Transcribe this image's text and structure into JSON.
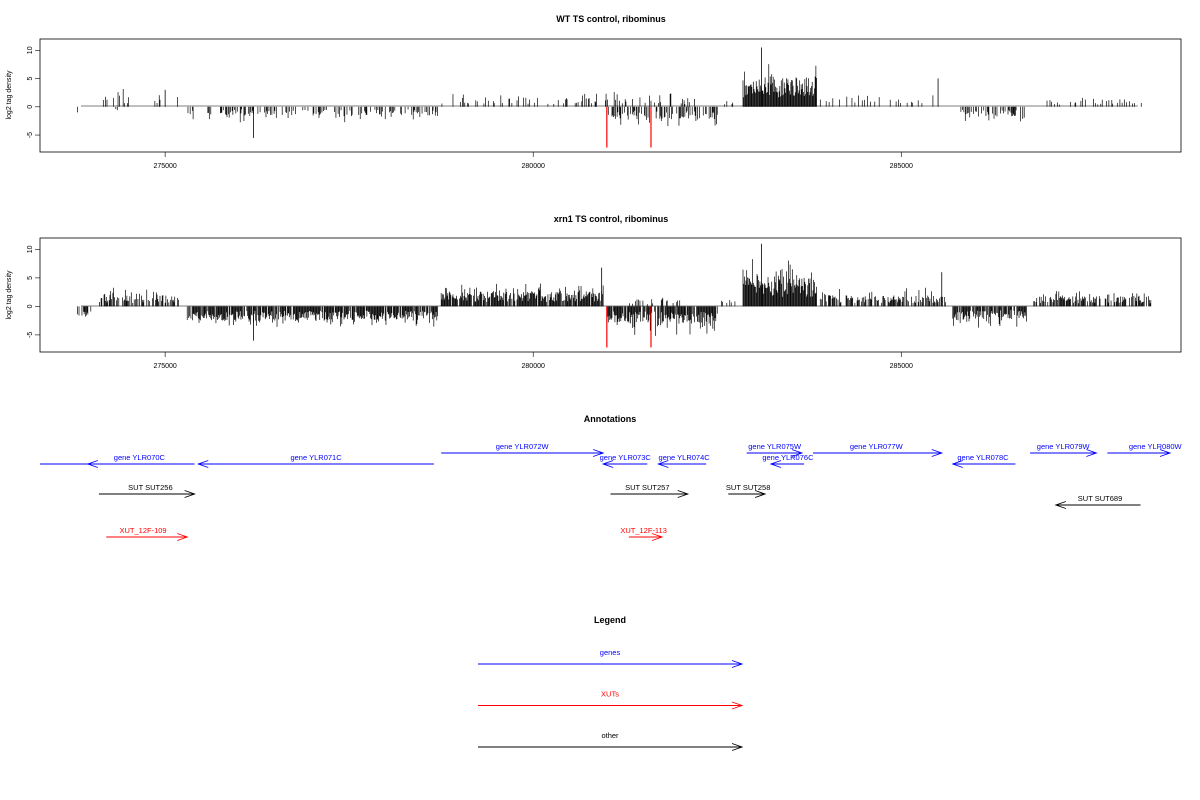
{
  "chart_data": [
    {
      "type": "bar",
      "title": "WT TS control, ribominus",
      "ylabel": "log2 tag density",
      "xlim": [
        273300,
        288800
      ],
      "ylim": [
        -8,
        12
      ],
      "xticks": [
        275000,
        280000,
        285000
      ],
      "xtick_labels": [
        "275000",
        "280000",
        "285000"
      ],
      "yticks": [
        -5,
        0,
        5,
        10
      ],
      "ytick_labels": [
        "-5",
        "0",
        "5",
        "10"
      ],
      "grid": false,
      "regions": [
        {
          "start": 273800,
          "end": 273830,
          "sign": -1,
          "base": 1.2,
          "var": 0.8,
          "density": 0.25
        },
        {
          "start": 274100,
          "end": 274500,
          "sign": 1,
          "base": 2,
          "var": 1.2,
          "density": 0.15
        },
        {
          "start": 274300,
          "end": 274350,
          "sign": -1,
          "base": 0.8,
          "var": 0.4,
          "density": 0.3
        },
        {
          "start": 274800,
          "end": 275200,
          "sign": 1,
          "base": 1.4,
          "var": 1.4,
          "density": 0.12
        },
        {
          "start": 275300,
          "end": 278700,
          "sign": -1,
          "base": 1.5,
          "var": 1.4,
          "density": 0.35
        },
        {
          "start": 278750,
          "end": 282200,
          "sign": 1,
          "base": 1.6,
          "var": 1.4,
          "density": 0.22
        },
        {
          "start": 281000,
          "end": 282500,
          "sign": -1,
          "base": 2.2,
          "var": 1.6,
          "density": 0.45
        },
        {
          "start": 282550,
          "end": 282750,
          "sign": 1,
          "base": 1,
          "var": 0.6,
          "density": 0.2
        },
        {
          "start": 282850,
          "end": 283850,
          "sign": 1,
          "base": 5.5,
          "var": 3.5,
          "density": 1.0
        },
        {
          "start": 283900,
          "end": 285500,
          "sign": 1,
          "base": 1.6,
          "var": 1.6,
          "density": 0.18
        },
        {
          "start": 285800,
          "end": 286700,
          "sign": -1,
          "base": 1.8,
          "var": 1.2,
          "density": 0.5
        },
        {
          "start": 286900,
          "end": 288300,
          "sign": 1,
          "base": 1.3,
          "var": 0.8,
          "density": 0.22
        }
      ],
      "spikes": [
        {
          "x": 275000,
          "y": 3,
          "color": "#000000"
        },
        {
          "x": 276200,
          "y": -5.5,
          "color": "#000000"
        },
        {
          "x": 283100,
          "y": 10.5,
          "color": "#000000"
        },
        {
          "x": 285500,
          "y": 5,
          "color": "#000000"
        },
        {
          "x": 281000,
          "y": -7.2,
          "color": "#ff0000"
        },
        {
          "x": 281600,
          "y": -7.2,
          "color": "#ff0000"
        }
      ]
    },
    {
      "type": "bar",
      "title": "xrn1 TS control, ribominus",
      "ylabel": "log2 tag density",
      "xlim": [
        273300,
        288800
      ],
      "ylim": [
        -8,
        12
      ],
      "xticks": [
        275000,
        280000,
        285000
      ],
      "xtick_labels": [
        "275000",
        "280000",
        "285000"
      ],
      "yticks": [
        -5,
        0,
        5,
        10
      ],
      "ytick_labels": [
        "-5",
        "0",
        "5",
        "10"
      ],
      "grid": false,
      "regions": [
        {
          "start": 273800,
          "end": 274000,
          "sign": -1,
          "base": 2,
          "var": 1.2,
          "density": 0.5
        },
        {
          "start": 274100,
          "end": 275200,
          "sign": 1,
          "base": 2,
          "var": 1.6,
          "density": 0.55
        },
        {
          "start": 275300,
          "end": 278700,
          "sign": -1,
          "base": 2.5,
          "var": 1.6,
          "density": 0.9
        },
        {
          "start": 278750,
          "end": 280950,
          "sign": 1,
          "base": 2.6,
          "var": 1.6,
          "density": 0.9
        },
        {
          "start": 281000,
          "end": 282500,
          "sign": -1,
          "base": 3,
          "var": 2.5,
          "density": 0.9
        },
        {
          "start": 281300,
          "end": 282000,
          "sign": 1,
          "base": 1.2,
          "var": 0.8,
          "density": 0.25
        },
        {
          "start": 282550,
          "end": 282750,
          "sign": 1,
          "base": 1.2,
          "var": 0.8,
          "density": 0.3
        },
        {
          "start": 282850,
          "end": 283850,
          "sign": 1,
          "base": 5.5,
          "var": 4,
          "density": 1.0
        },
        {
          "start": 283900,
          "end": 285600,
          "sign": 1,
          "base": 2,
          "var": 1.6,
          "density": 0.7
        },
        {
          "start": 285700,
          "end": 286700,
          "sign": -1,
          "base": 2.2,
          "var": 2,
          "density": 0.85
        },
        {
          "start": 286800,
          "end": 288400,
          "sign": 1,
          "base": 1.8,
          "var": 1.2,
          "density": 0.65
        }
      ],
      "spikes": [
        {
          "x": 280930,
          "y": 6.8,
          "color": "#000000"
        },
        {
          "x": 283100,
          "y": 11,
          "color": "#000000"
        },
        {
          "x": 285550,
          "y": 6,
          "color": "#000000"
        },
        {
          "x": 276200,
          "y": -6,
          "color": "#000000"
        },
        {
          "x": 281000,
          "y": -7.2,
          "color": "#ff0000"
        },
        {
          "x": 281600,
          "y": -7.2,
          "color": "#ff0000"
        }
      ]
    }
  ],
  "annotations": {
    "title": "Annotations",
    "xlim": [
      273300,
      288800
    ],
    "items": [
      {
        "label": "",
        "start": 273300,
        "end": 274050,
        "strand": "none",
        "row": 1,
        "color": "#0000ff",
        "label_pos": 0
      },
      {
        "label": "gene YLR070C",
        "start": 273950,
        "end": 275400,
        "strand": "-",
        "row": 1,
        "color": "#0000ff",
        "label_pos": 274650
      },
      {
        "label": "gene YLR071C",
        "start": 275450,
        "end": 278650,
        "strand": "-",
        "row": 1,
        "color": "#0000ff",
        "label_pos": 277050
      },
      {
        "label": "gene YLR072W",
        "start": 278750,
        "end": 280950,
        "strand": "+",
        "row": 0,
        "color": "#0000ff",
        "label_pos": 279850
      },
      {
        "label": "gene YLR073C",
        "start": 280950,
        "end": 281550,
        "strand": "-",
        "row": 1,
        "color": "#0000ff",
        "label_pos": 281250
      },
      {
        "label": "gene YLR074C",
        "start": 281700,
        "end": 282350,
        "strand": "-",
        "row": 1,
        "color": "#0000ff",
        "label_pos": 282050
      },
      {
        "label": "gene YLR075W",
        "start": 282900,
        "end": 283650,
        "strand": "+",
        "row": 0,
        "color": "#0000ff",
        "label_pos": 283280
      },
      {
        "label": "gene YLR076C",
        "start": 283230,
        "end": 283680,
        "strand": "-",
        "row": 1,
        "color": "#0000ff",
        "label_pos": 283460
      },
      {
        "label": "gene YLR077W",
        "start": 283800,
        "end": 285550,
        "strand": "+",
        "row": 0,
        "color": "#0000ff",
        "label_pos": 284660
      },
      {
        "label": "gene YLR078C",
        "start": 285700,
        "end": 286550,
        "strand": "-",
        "row": 1,
        "color": "#0000ff",
        "label_pos": 286110
      },
      {
        "label": "gene YLR079W",
        "start": 286750,
        "end": 287650,
        "strand": "+",
        "row": 0,
        "color": "#0000ff",
        "label_pos": 287200
      },
      {
        "label": "gene YLR080W",
        "start": 287800,
        "end": 289100,
        "strand": "+",
        "row": 0,
        "color": "#0000ff",
        "label_pos": 288450
      },
      {
        "label": "SUT SUT256",
        "start": 274100,
        "end": 275400,
        "strand": "+",
        "row": 2,
        "color": "#000000",
        "label_pos": 274800
      },
      {
        "label": "SUT SUT257",
        "start": 281050,
        "end": 282100,
        "strand": "+",
        "row": 2,
        "color": "#000000",
        "label_pos": 281550
      },
      {
        "label": "SUT SUT258",
        "start": 282650,
        "end": 283150,
        "strand": "+",
        "row": 2,
        "color": "#000000",
        "label_pos": 282920
      },
      {
        "label": "SUT SUT689",
        "start": 287100,
        "end": 288250,
        "strand": "-",
        "row": 3,
        "color": "#000000",
        "label_pos": 287700
      },
      {
        "label": "XUT_12F-109",
        "start": 274200,
        "end": 275300,
        "strand": "+",
        "row": 4,
        "color": "#ff0000",
        "label_pos": 274700
      },
      {
        "label": "XUT_12F-113",
        "start": 281300,
        "end": 281750,
        "strand": "+",
        "row": 4,
        "color": "#ff0000",
        "label_pos": 281500
      }
    ]
  },
  "legend": {
    "title": "Legend",
    "items": [
      {
        "label": "genes",
        "color": "#0000ff"
      },
      {
        "label": "XUTs",
        "color": "#ff0000"
      },
      {
        "label": "other",
        "color": "#000000"
      }
    ]
  }
}
